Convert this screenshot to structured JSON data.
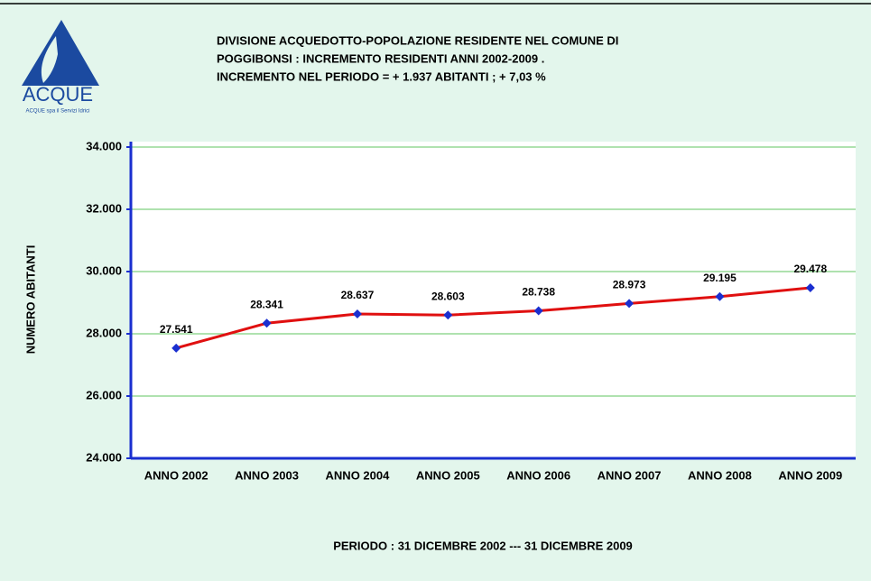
{
  "chart_data": {
    "type": "line",
    "title": [
      "DIVISIONE ACQUEDOTTO-POPOLAZIONE RESIDENTE NEL COMUNE DI",
      "POGGIBONSI : INCREMENTO RESIDENTI  ANNI 2002-2009 .",
      "INCREMENTO NEL PERIODO  =  + 1.937  ABITANTI   ;  + 7,03   %"
    ],
    "logo": {
      "name": "ACQUE",
      "tagline": "ACQUE spa il Servizi Idrici"
    },
    "ylabel": "NUMERO ABITANTI",
    "xlabel": "PERIODO : 31 DICEMBRE 2002 --- 31 DICEMBRE 2009",
    "categories": [
      "ANNO 2002",
      "ANNO 2003",
      "ANNO 2004",
      "ANNO 2005",
      "ANNO 2006",
      "ANNO 2007",
      "ANNO 2008",
      "ANNO 2009"
    ],
    "values": [
      27541,
      28341,
      28637,
      28603,
      28738,
      28973,
      29195,
      29478
    ],
    "value_labels": [
      "27.541",
      "28.341",
      "28.637",
      "28.603",
      "28.738",
      "28.973",
      "29.195",
      "29.478"
    ],
    "color": "#e01010",
    "marker_color": "#1a2fd0",
    "ylim": [
      24000,
      34000
    ],
    "yticks": [
      {
        "value": 24000,
        "label": "24.000"
      },
      {
        "value": 26000,
        "label": "26.000"
      },
      {
        "value": 28000,
        "label": "28.000"
      },
      {
        "value": 30000,
        "label": "30.000"
      },
      {
        "value": 32000,
        "label": "32.000"
      },
      {
        "value": 34000,
        "label": "34.000"
      }
    ],
    "grid": true
  }
}
